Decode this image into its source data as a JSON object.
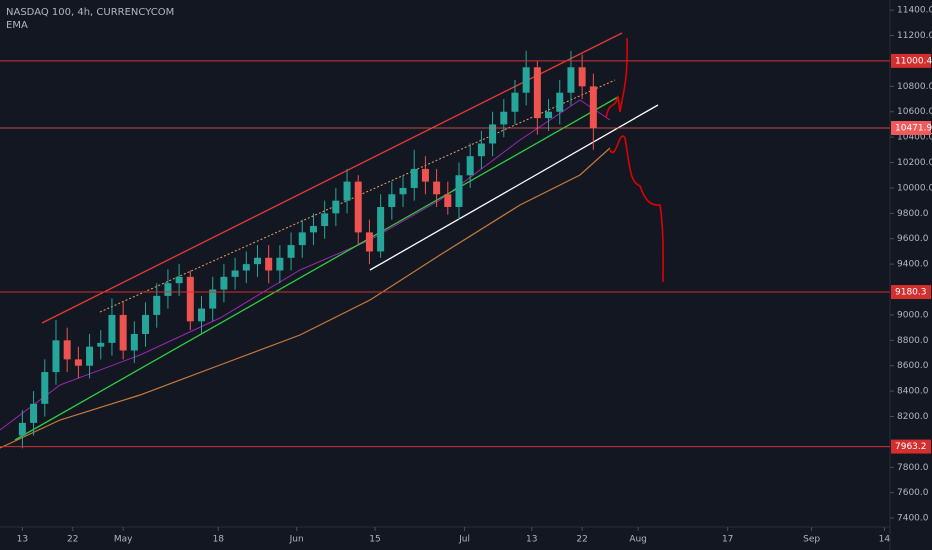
{
  "chart_data": {
    "type": "candlestick",
    "title": "NASDAQ 100, 4h, CURRENCYCOM",
    "subtitle": "EMA",
    "x": [
      104,
      106,
      108,
      110,
      112,
      114,
      116,
      118,
      120,
      122,
      124,
      126,
      128,
      130,
      132,
      134,
      136,
      138,
      140,
      142,
      144,
      146,
      148,
      150,
      152,
      154,
      156,
      158,
      160,
      162,
      164,
      166,
      168,
      170,
      172,
      174,
      176,
      178,
      180,
      182,
      184,
      186,
      188,
      190,
      192,
      194,
      196,
      198,
      200,
      202,
      204,
      206
    ],
    "open": [
      8050,
      8150,
      8300,
      8550,
      8800,
      8650,
      8600,
      8750,
      8780,
      9000,
      8720,
      8850,
      9000,
      9150,
      9250,
      9300,
      8950,
      9050,
      9200,
      9300,
      9350,
      9400,
      9450,
      9350,
      9450,
      9550,
      9650,
      9700,
      9800,
      9900,
      10050,
      9650,
      9500,
      9850,
      9950,
      10000,
      10150,
      10050,
      9950,
      9850,
      10100,
      10250,
      10350,
      10500,
      10600,
      10750,
      10950,
      10550,
      10600,
      10750,
      10950,
      10800
    ],
    "high": [
      8250,
      8400,
      8650,
      8960,
      8900,
      8750,
      8850,
      8880,
      9130,
      9100,
      8950,
      9100,
      9250,
      9360,
      9400,
      9350,
      9150,
      9300,
      9400,
      9450,
      9500,
      9550,
      9550,
      9550,
      9650,
      9750,
      9800,
      9900,
      10000,
      10150,
      10100,
      9750,
      9950,
      10050,
      10100,
      10300,
      10250,
      10150,
      10050,
      10200,
      10350,
      10450,
      10600,
      10700,
      10850,
      11080,
      11000,
      10700,
      10850,
      11080,
      11050,
      10900
    ],
    "low": [
      7950,
      8050,
      8200,
      8450,
      8550,
      8500,
      8500,
      8650,
      8680,
      8650,
      8620,
      8750,
      8900,
      9050,
      9150,
      8880,
      8850,
      8950,
      9100,
      9200,
      9250,
      9300,
      9250,
      9250,
      9350,
      9450,
      9550,
      9600,
      9700,
      9800,
      9550,
      9400,
      9450,
      9750,
      9850,
      9900,
      9950,
      9850,
      9790,
      9750,
      10000,
      10150,
      10250,
      10400,
      10500,
      10650,
      10420,
      10450,
      10500,
      10650,
      10700,
      10300
    ],
    "close": [
      8150,
      8300,
      8550,
      8800,
      8650,
      8600,
      8750,
      8780,
      9000,
      8720,
      8850,
      9000,
      9150,
      9250,
      9300,
      8950,
      9050,
      9200,
      9300,
      9350,
      9400,
      9450,
      9350,
      9450,
      9550,
      9650,
      9700,
      9800,
      9900,
      10050,
      9650,
      9500,
      9850,
      9950,
      10000,
      10150,
      10050,
      9950,
      9850,
      10100,
      10250,
      10350,
      10500,
      10600,
      10750,
      10950,
      10550,
      10600,
      10750,
      10950,
      10800,
      10471.9
    ],
    "up_color": "#26a69a",
    "down_color": "#ef5350",
    "levels": [
      11000.4,
      9180.3,
      7963.2
    ],
    "level_color": "#d32f2f",
    "last_price": 10471.9,
    "last_price_color": "#f05a5a",
    "xlim": [
      100,
      259
    ],
    "ylim": [
      7330,
      11480
    ],
    "xticks": [
      {
        "value": 104,
        "label": "13"
      },
      {
        "value": 113,
        "label": "22"
      },
      {
        "value": 122,
        "label": "May"
      },
      {
        "value": 139,
        "label": "18"
      },
      {
        "value": 153,
        "label": "Jun"
      },
      {
        "value": 167,
        "label": "15"
      },
      {
        "value": 183,
        "label": "Jul"
      },
      {
        "value": 195,
        "label": "13"
      },
      {
        "value": 204,
        "label": "22"
      },
      {
        "value": 214,
        "label": "Aug"
      },
      {
        "value": 230,
        "label": "17"
      },
      {
        "value": 245,
        "label": "Sep"
      },
      {
        "value": 258,
        "label": "14"
      }
    ],
    "yticks": [
      {
        "value": 11400,
        "label": "11400.0"
      },
      {
        "value": 11200,
        "label": "11200.0"
      },
      {
        "value": 10800,
        "label": "10800.0"
      },
      {
        "value": 10600,
        "label": "10600.0"
      },
      {
        "value": 10400,
        "label": "10400.0"
      },
      {
        "value": 10200,
        "label": "10200.0"
      },
      {
        "value": 10000,
        "label": "10000.0"
      },
      {
        "value": 9800,
        "label": "9800.0"
      },
      {
        "value": 9600,
        "label": "9600.0"
      },
      {
        "value": 9400,
        "label": "9400.0"
      },
      {
        "value": 9000,
        "label": "9000.0"
      },
      {
        "value": 8800,
        "label": "8800.0"
      },
      {
        "value": 8600,
        "label": "8600.0"
      },
      {
        "value": 8400,
        "label": "8400.0"
      },
      {
        "value": 8200,
        "label": "8200.0"
      },
      {
        "value": 7800,
        "label": "7800.0"
      },
      {
        "value": 7600,
        "label": "7600.0"
      },
      {
        "value": 7400,
        "label": "7400.0"
      }
    ]
  }
}
